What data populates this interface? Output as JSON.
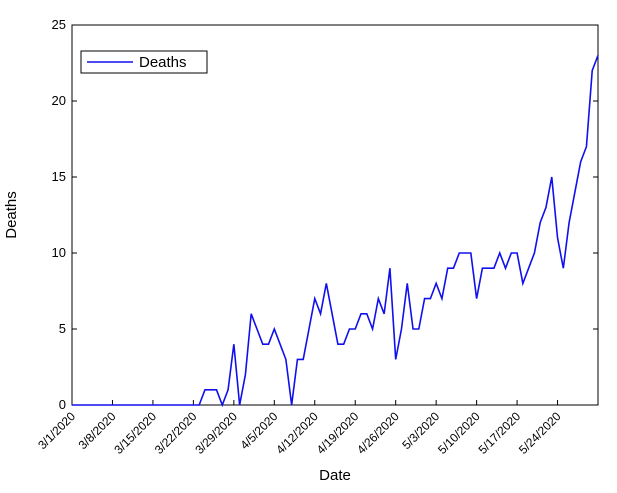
{
  "chart_data": {
    "type": "line",
    "xlabel": "Date",
    "ylabel": "Deaths",
    "x": [
      "3/1/2020",
      "3/2/2020",
      "3/3/2020",
      "3/4/2020",
      "3/5/2020",
      "3/6/2020",
      "3/7/2020",
      "3/8/2020",
      "3/9/2020",
      "3/10/2020",
      "3/11/2020",
      "3/12/2020",
      "3/13/2020",
      "3/14/2020",
      "3/15/2020",
      "3/16/2020",
      "3/17/2020",
      "3/18/2020",
      "3/19/2020",
      "3/20/2020",
      "3/21/2020",
      "3/22/2020",
      "3/23/2020",
      "3/24/2020",
      "3/25/2020",
      "3/26/2020",
      "3/27/2020",
      "3/28/2020",
      "3/29/2020",
      "3/30/2020",
      "3/31/2020",
      "4/1/2020",
      "4/2/2020",
      "4/3/2020",
      "4/4/2020",
      "4/5/2020",
      "4/6/2020",
      "4/7/2020",
      "4/8/2020",
      "4/9/2020",
      "4/10/2020",
      "4/11/2020",
      "4/12/2020",
      "4/13/2020",
      "4/14/2020",
      "4/15/2020",
      "4/16/2020",
      "4/17/2020",
      "4/18/2020",
      "4/19/2020",
      "4/20/2020",
      "4/21/2020",
      "4/22/2020",
      "4/23/2020",
      "4/24/2020",
      "4/25/2020",
      "4/26/2020",
      "4/27/2020",
      "4/28/2020",
      "4/29/2020",
      "4/30/2020",
      "5/1/2020",
      "5/2/2020",
      "5/3/2020",
      "5/4/2020",
      "5/5/2020",
      "5/6/2020",
      "5/7/2020",
      "5/8/2020",
      "5/9/2020",
      "5/10/2020",
      "5/11/2020",
      "5/12/2020",
      "5/13/2020",
      "5/14/2020",
      "5/15/2020",
      "5/16/2020",
      "5/17/2020",
      "5/18/2020",
      "5/19/2020",
      "5/20/2020",
      "5/21/2020",
      "5/22/2020",
      "5/23/2020",
      "5/24/2020",
      "5/25/2020",
      "5/26/2020",
      "5/27/2020",
      "5/28/2020",
      "5/29/2020",
      "5/30/2020",
      "5/31/2020"
    ],
    "series": [
      {
        "name": "Deaths",
        "color": "#1010ee",
        "values": [
          0,
          0,
          0,
          0,
          0,
          0,
          0,
          0,
          0,
          0,
          0,
          0,
          0,
          0,
          0,
          0,
          0,
          0,
          0,
          0,
          0,
          0,
          0,
          1,
          1,
          1,
          0,
          1,
          4,
          0,
          2,
          6,
          5,
          4,
          4,
          5,
          4,
          3,
          0,
          3,
          3,
          5,
          7,
          6,
          8,
          6,
          4,
          4,
          5,
          5,
          6,
          6,
          5,
          7,
          6,
          9,
          3,
          5,
          8,
          5,
          5,
          7,
          7,
          8,
          7,
          9,
          9,
          10,
          10,
          10,
          7,
          9,
          9,
          9,
          10,
          9,
          10,
          10,
          8,
          9,
          10,
          12,
          13,
          15,
          11,
          9,
          12,
          14,
          16,
          17,
          22,
          23
        ]
      }
    ],
    "xlim": [
      "3/1/2020",
      "5/31/2020"
    ],
    "xticks": [
      "3/1/2020",
      "3/8/2020",
      "3/15/2020",
      "3/22/2020",
      "3/29/2020",
      "4/5/2020",
      "4/12/2020",
      "4/19/2020",
      "4/26/2020",
      "5/3/2020",
      "5/10/2020",
      "5/17/2020",
      "5/24/2020"
    ],
    "ylim": [
      0,
      25
    ],
    "yticks": [
      0,
      5,
      10,
      15,
      20,
      25
    ],
    "legend": "upper left"
  }
}
